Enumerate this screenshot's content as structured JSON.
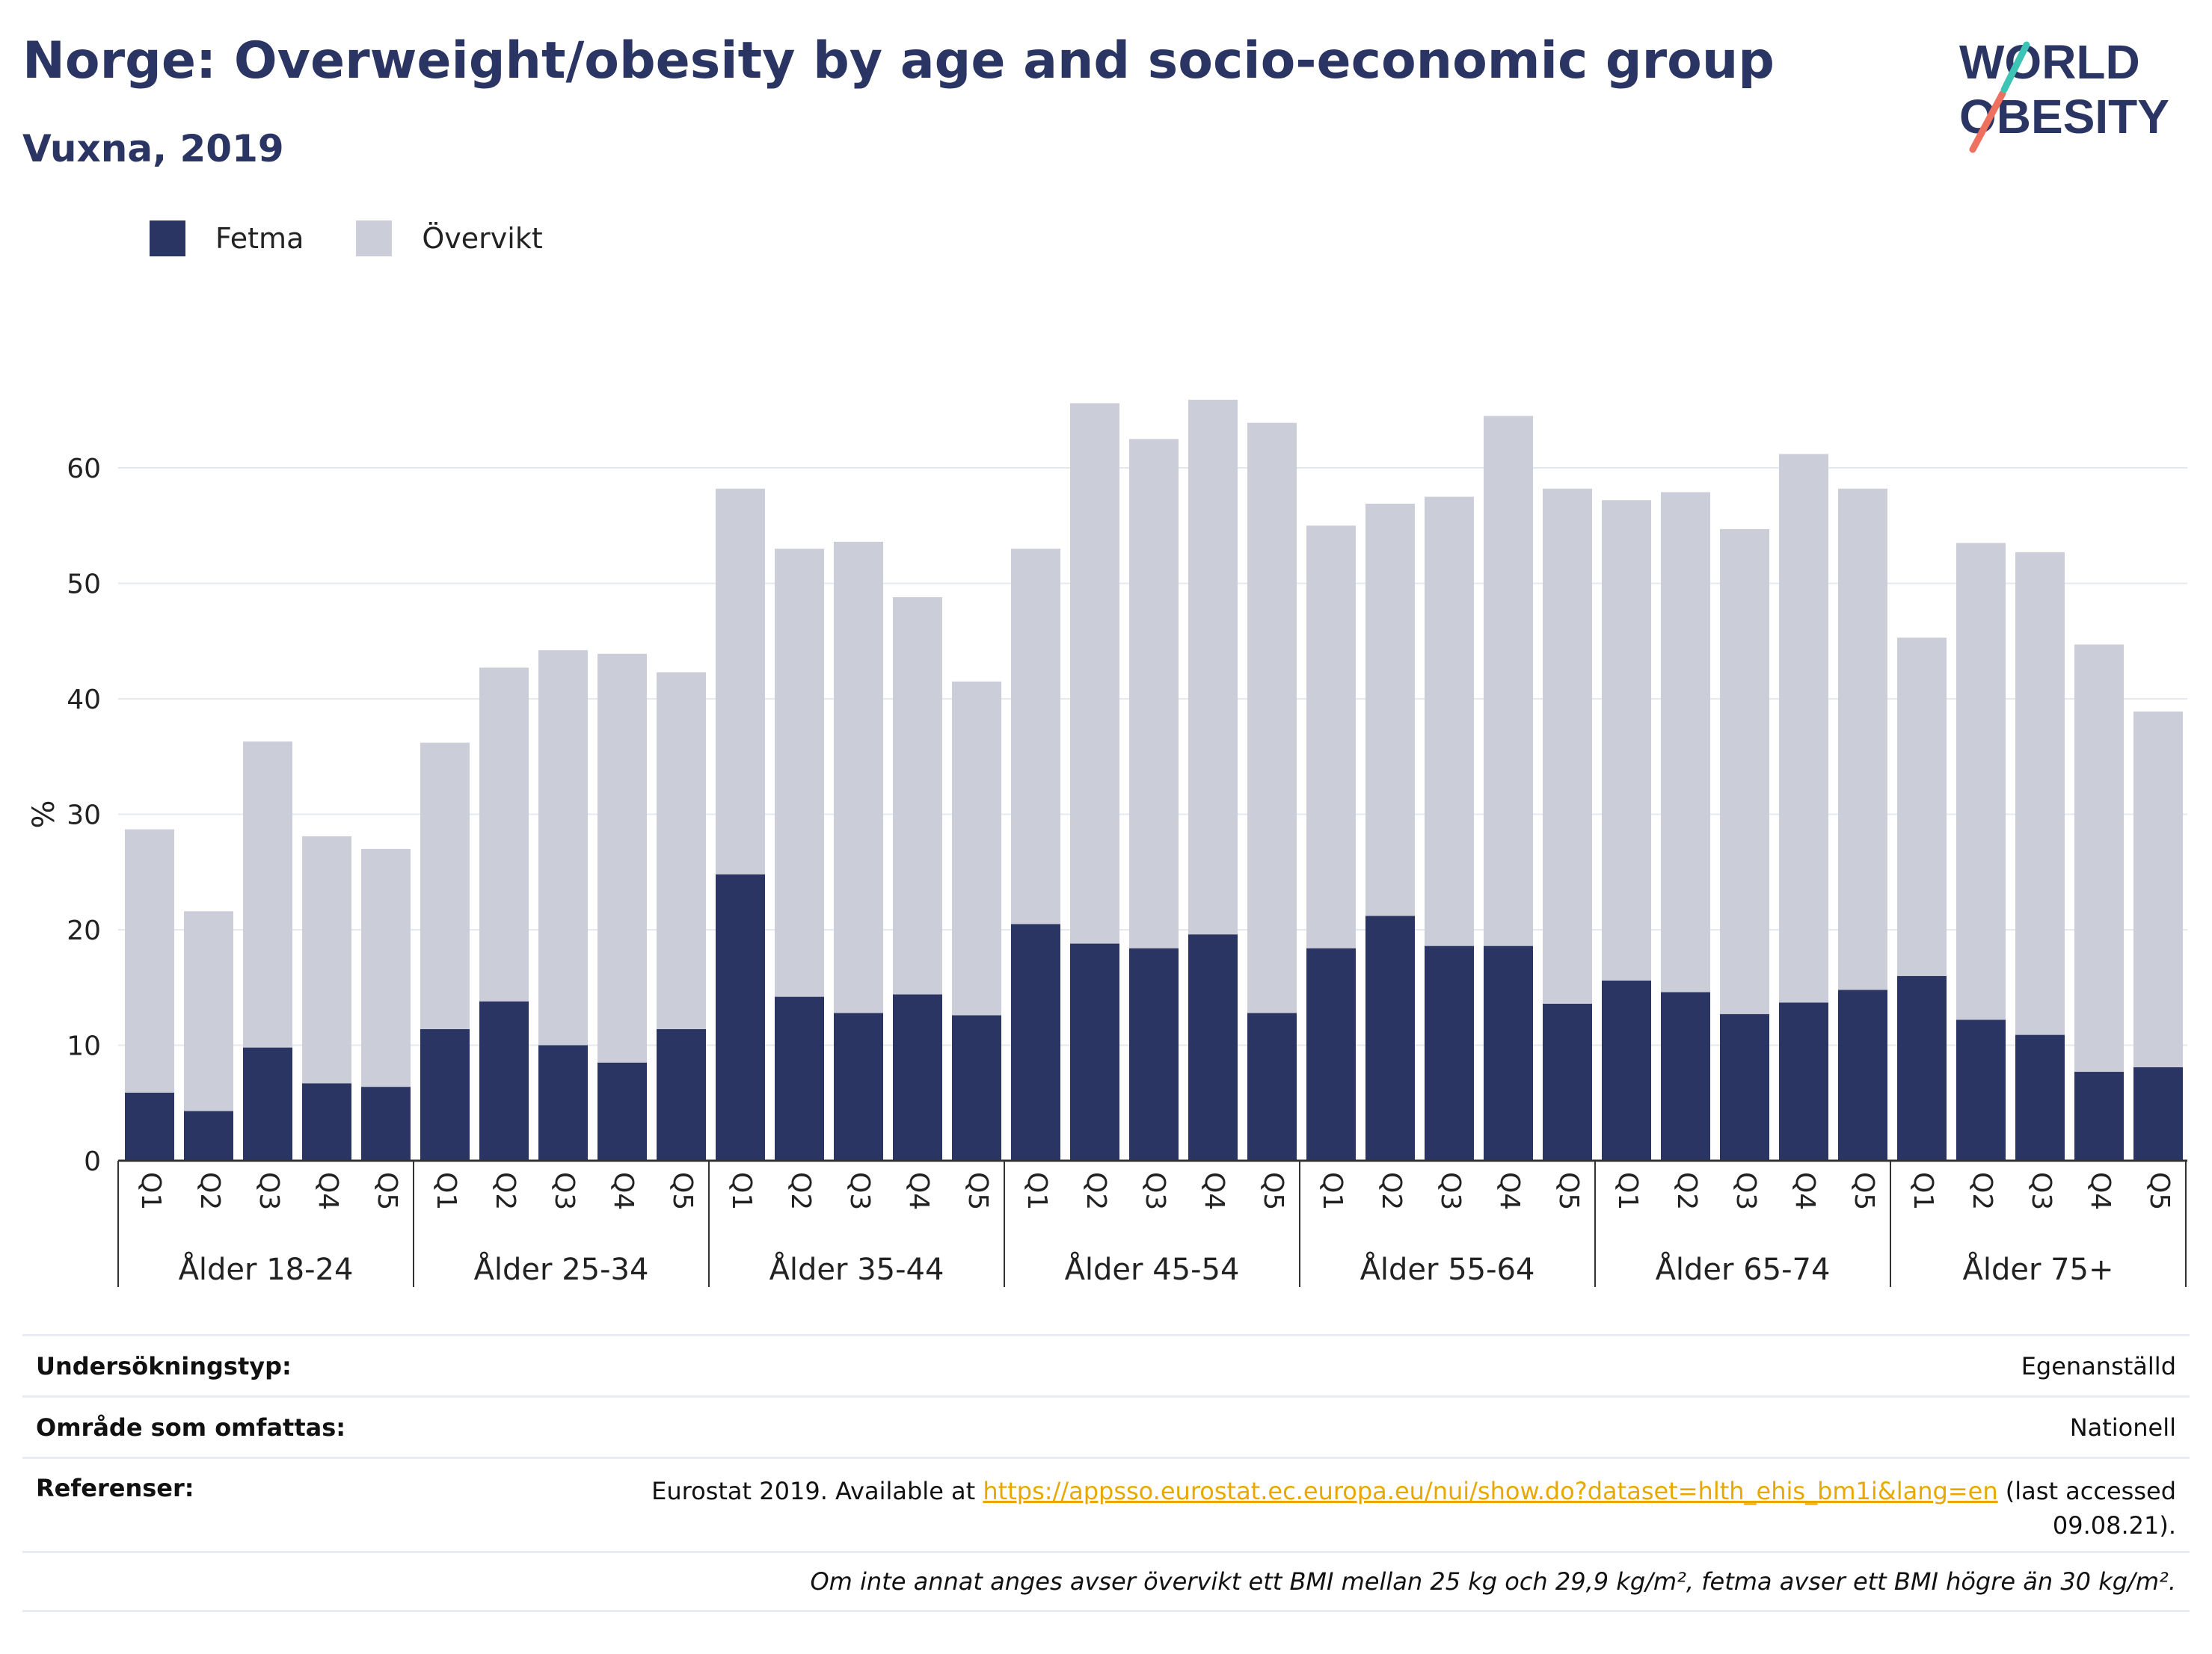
{
  "header": {
    "title": "Norge: Overweight/obesity by age and socio-economic group",
    "subtitle": "Vuxna, 2019"
  },
  "logo": {
    "line1": "WORLD",
    "line2": "OBESITY"
  },
  "legend": [
    {
      "label": "Fetma",
      "color": "#2a3563"
    },
    {
      "label": "Övervikt",
      "color": "#cbcdd9"
    }
  ],
  "chart_data": {
    "type": "bar",
    "stacked": true,
    "ylabel": "%",
    "ylim": [
      0,
      70
    ],
    "yticks": [
      0,
      10,
      20,
      30,
      40,
      50,
      60
    ],
    "grid": true,
    "legend_position": "top-left",
    "groups": [
      "Ålder 18-24",
      "Ålder 25-34",
      "Ålder 35-44",
      "Ålder 45-54",
      "Ålder 55-64",
      "Ålder 65-74",
      "Ålder 75+"
    ],
    "subcategories": [
      "Q1",
      "Q2",
      "Q3",
      "Q4",
      "Q5"
    ],
    "series": [
      {
        "name": "Fetma",
        "color": "#2a3563",
        "values": [
          5.9,
          4.3,
          9.8,
          6.7,
          6.4,
          11.4,
          13.8,
          10.0,
          8.5,
          11.4,
          24.8,
          14.2,
          12.8,
          14.4,
          12.6,
          20.5,
          18.8,
          18.4,
          19.6,
          12.8,
          18.4,
          21.2,
          18.6,
          18.6,
          13.6,
          15.6,
          14.6,
          12.7,
          13.7,
          14.8,
          16.0,
          12.2,
          10.9,
          7.7,
          8.1
        ]
      },
      {
        "name": "Övervikt",
        "color": "#cbcdd9",
        "values": [
          22.8,
          17.3,
          26.5,
          21.4,
          20.6,
          24.8,
          28.9,
          34.2,
          35.4,
          30.9,
          33.4,
          38.8,
          40.8,
          34.4,
          28.9,
          32.5,
          46.8,
          44.1,
          46.3,
          51.1,
          36.6,
          35.7,
          38.9,
          45.9,
          44.6,
          41.6,
          43.3,
          42.0,
          47.5,
          43.4,
          29.3,
          41.3,
          41.8,
          37.0,
          30.8
        ]
      }
    ]
  },
  "info": {
    "rows": [
      {
        "key": "Undersökningstyp:",
        "value": "Egenanställd"
      },
      {
        "key": "Område som omfattas:",
        "value": "Nationell"
      },
      {
        "key": "Referenser:",
        "value_pre": "Eurostat 2019. Available at ",
        "link": "https://appsso.eurostat.ec.europa.eu/nui/show.do?dataset=hlth_ehis_bm1i&lang=en",
        "value_mid": " (last accessed",
        "value_post": "09.08.21)."
      }
    ],
    "note": "Om inte annat anges avser övervikt ett BMI mellan 25 kg och 29,9 kg/m², fetma avser ett BMI högre än 30 kg/m²."
  }
}
